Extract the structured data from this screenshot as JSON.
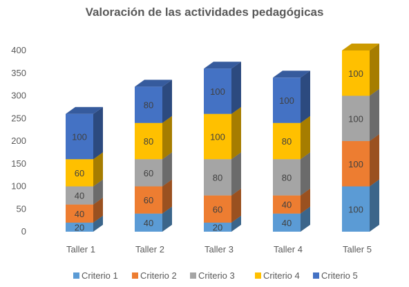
{
  "chart_data": {
    "type": "bar",
    "stacked": true,
    "style": "3d-column",
    "title": "Valoración de las actividades pedagógicas",
    "xlabel": "",
    "ylabel": "",
    "categories": [
      "Taller 1",
      "Taller 2",
      "Taller 3",
      "Taller 4",
      "Taller 5"
    ],
    "ylim": [
      0,
      400
    ],
    "yticks": [
      0,
      50,
      100,
      150,
      200,
      250,
      300,
      350,
      400
    ],
    "grid": false,
    "legend": "bottom",
    "series": [
      {
        "name": "Criterio 1",
        "color": "#5B9BD5",
        "values": [
          20,
          40,
          20,
          40,
          100
        ]
      },
      {
        "name": "Criterio 2",
        "color": "#ED7D31",
        "values": [
          40,
          60,
          60,
          40,
          100
        ]
      },
      {
        "name": "Criterio 3",
        "color": "#A5A5A5",
        "values": [
          40,
          60,
          80,
          80,
          100
        ]
      },
      {
        "name": "Criterio 4",
        "color": "#FFC000",
        "values": [
          60,
          80,
          100,
          80,
          100
        ]
      },
      {
        "name": "Criterio 5",
        "color": "#4472C4",
        "values": [
          100,
          80,
          100,
          100,
          0
        ]
      }
    ]
  }
}
